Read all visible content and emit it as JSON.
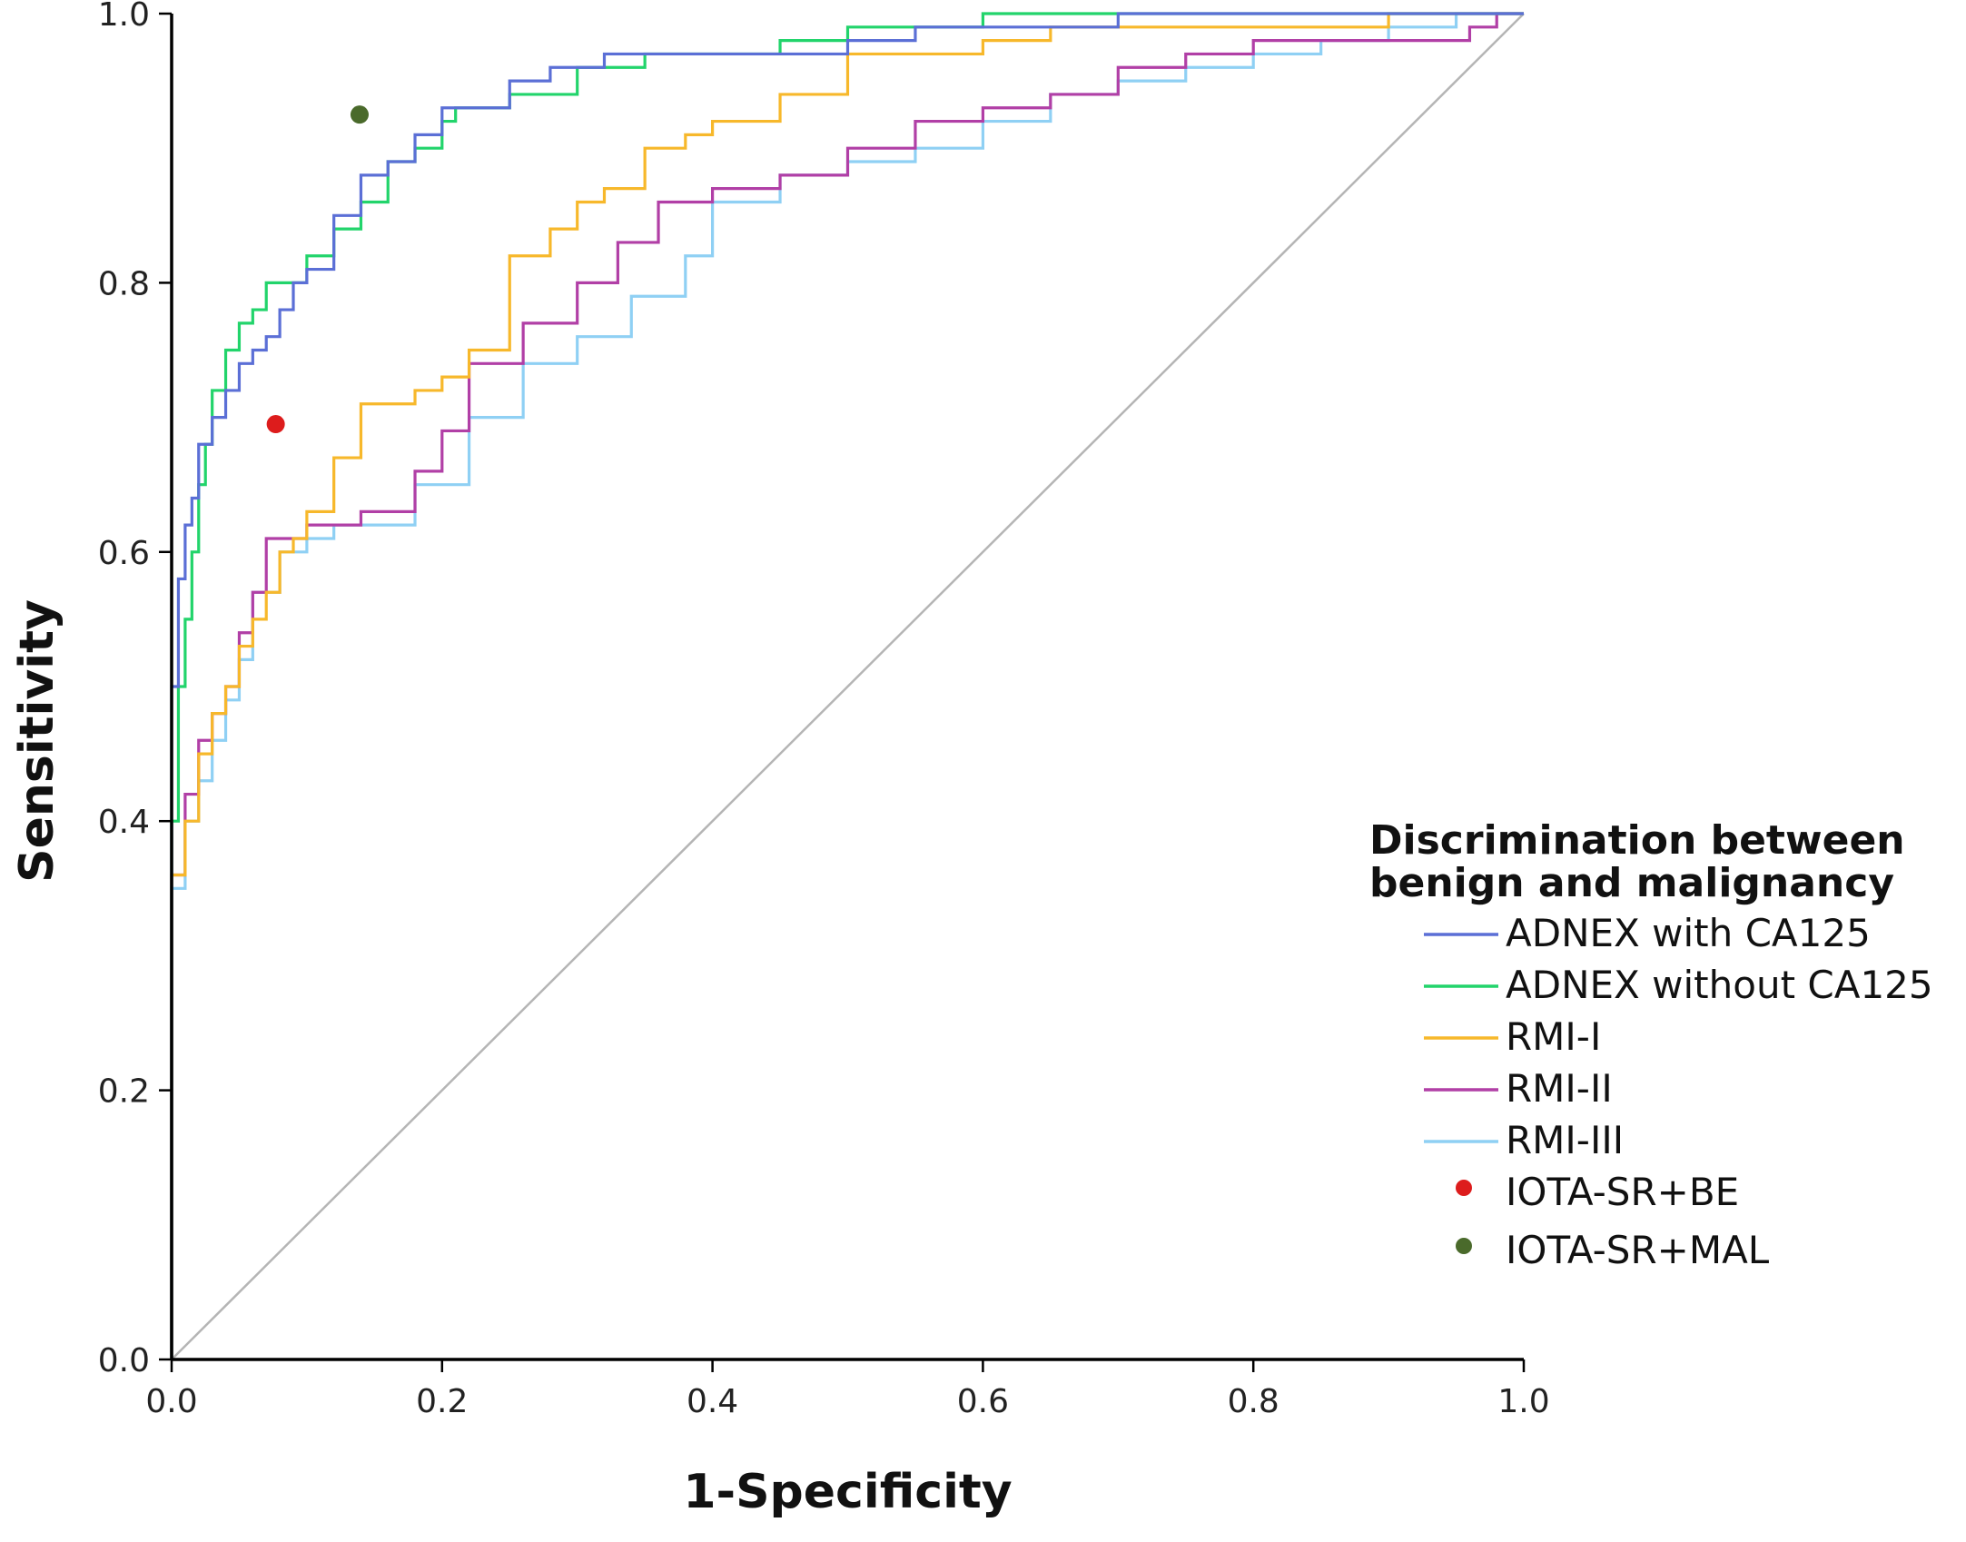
{
  "chart_data": {
    "type": "line",
    "xlabel": "1-Specificity",
    "ylabel": "Sensitivity",
    "xlim": [
      0,
      1
    ],
    "ylim": [
      0,
      1
    ],
    "xticks": [
      "0.0",
      "0.2",
      "0.4",
      "0.6",
      "0.8",
      "1.0"
    ],
    "yticks": [
      "0.0",
      "0.2",
      "0.4",
      "0.6",
      "0.8",
      "1.0"
    ],
    "reference_line": {
      "x": [
        0,
        1
      ],
      "y": [
        0,
        1
      ],
      "color": "#b5b5b5"
    },
    "legend": {
      "title_lines": [
        "Discrimination between",
        "benign and malignancy"
      ],
      "placement": "right"
    },
    "series": [
      {
        "name": "ADNEX with CA125",
        "color": "#5b6fd6",
        "x": [
          0,
          0,
          0.005,
          0.01,
          0.015,
          0.02,
          0.03,
          0.04,
          0.05,
          0.06,
          0.07,
          0.08,
          0.09,
          0.1,
          0.12,
          0.14,
          0.16,
          0.18,
          0.2,
          0.22,
          0.25,
          0.28,
          0.32,
          0.36,
          0.4,
          0.45,
          0.5,
          0.55,
          0.6,
          0.7,
          0.74,
          0.8,
          0.9,
          1.0
        ],
        "y": [
          0,
          0.3,
          0.5,
          0.58,
          0.62,
          0.64,
          0.68,
          0.7,
          0.72,
          0.74,
          0.75,
          0.76,
          0.78,
          0.8,
          0.81,
          0.85,
          0.88,
          0.89,
          0.91,
          0.93,
          0.93,
          0.95,
          0.96,
          0.97,
          0.97,
          0.97,
          0.97,
          0.98,
          0.99,
          0.99,
          1.0,
          1.0,
          1.0,
          1.0
        ]
      },
      {
        "name": "ADNEX without CA125",
        "color": "#22d46b",
        "x": [
          0,
          0,
          0.005,
          0.01,
          0.015,
          0.02,
          0.025,
          0.03,
          0.04,
          0.05,
          0.06,
          0.07,
          0.08,
          0.1,
          0.12,
          0.14,
          0.16,
          0.18,
          0.2,
          0.21,
          0.22,
          0.25,
          0.3,
          0.35,
          0.4,
          0.45,
          0.5,
          0.55,
          0.6,
          0.75,
          0.8,
          1.0
        ],
        "y": [
          0,
          0.3,
          0.4,
          0.5,
          0.55,
          0.6,
          0.65,
          0.68,
          0.72,
          0.75,
          0.77,
          0.78,
          0.8,
          0.8,
          0.82,
          0.84,
          0.86,
          0.89,
          0.9,
          0.92,
          0.93,
          0.93,
          0.94,
          0.96,
          0.97,
          0.97,
          0.98,
          0.99,
          0.99,
          1.0,
          1.0,
          1.0
        ]
      },
      {
        "name": "RMI-I",
        "color": "#f7b82b",
        "x": [
          0,
          0,
          0.01,
          0.02,
          0.03,
          0.04,
          0.05,
          0.06,
          0.07,
          0.08,
          0.09,
          0.1,
          0.12,
          0.14,
          0.16,
          0.18,
          0.2,
          0.22,
          0.25,
          0.28,
          0.3,
          0.32,
          0.35,
          0.38,
          0.4,
          0.45,
          0.5,
          0.55,
          0.6,
          0.65,
          0.7,
          0.75,
          0.8,
          0.9,
          1.0
        ],
        "y": [
          0,
          0.3,
          0.36,
          0.4,
          0.45,
          0.48,
          0.5,
          0.53,
          0.55,
          0.57,
          0.6,
          0.61,
          0.63,
          0.67,
          0.71,
          0.71,
          0.72,
          0.73,
          0.75,
          0.82,
          0.84,
          0.86,
          0.87,
          0.9,
          0.91,
          0.92,
          0.94,
          0.97,
          0.97,
          0.98,
          0.99,
          0.99,
          0.99,
          0.99,
          1.0
        ]
      },
      {
        "name": "RMI-II",
        "color": "#b13fa6",
        "x": [
          0,
          0,
          0.01,
          0.02,
          0.03,
          0.04,
          0.05,
          0.06,
          0.07,
          0.075,
          0.08,
          0.1,
          0.14,
          0.18,
          0.2,
          0.22,
          0.26,
          0.3,
          0.33,
          0.36,
          0.4,
          0.45,
          0.5,
          0.55,
          0.6,
          0.65,
          0.7,
          0.75,
          0.8,
          0.85,
          0.9,
          0.96,
          0.98,
          1.0
        ],
        "y": [
          0,
          0.29,
          0.36,
          0.42,
          0.46,
          0.48,
          0.5,
          0.54,
          0.57,
          0.61,
          0.61,
          0.61,
          0.62,
          0.63,
          0.66,
          0.69,
          0.74,
          0.77,
          0.8,
          0.83,
          0.86,
          0.87,
          0.88,
          0.9,
          0.92,
          0.93,
          0.94,
          0.96,
          0.97,
          0.98,
          0.98,
          0.98,
          0.99,
          1.0
        ]
      },
      {
        "name": "RMI-III",
        "color": "#8fd0f4",
        "x": [
          0,
          0,
          0.01,
          0.02,
          0.03,
          0.04,
          0.05,
          0.06,
          0.08,
          0.1,
          0.12,
          0.14,
          0.18,
          0.22,
          0.26,
          0.3,
          0.34,
          0.38,
          0.4,
          0.45,
          0.5,
          0.55,
          0.6,
          0.65,
          0.7,
          0.75,
          0.8,
          0.85,
          0.9,
          0.95,
          1.0
        ],
        "y": [
          0,
          0.3,
          0.35,
          0.4,
          0.43,
          0.46,
          0.49,
          0.52,
          0.57,
          0.6,
          0.61,
          0.62,
          0.62,
          0.65,
          0.7,
          0.74,
          0.76,
          0.79,
          0.82,
          0.86,
          0.88,
          0.89,
          0.9,
          0.92,
          0.94,
          0.95,
          0.96,
          0.97,
          0.98,
          0.99,
          1.0
        ]
      }
    ],
    "points": [
      {
        "name": "IOTA-SR+BE",
        "color": "#dd1c1c",
        "x": 0.077,
        "y": 0.695
      },
      {
        "name": "IOTA-SR+MAL",
        "color": "#4a6a2b",
        "x": 0.139,
        "y": 0.925
      }
    ]
  }
}
